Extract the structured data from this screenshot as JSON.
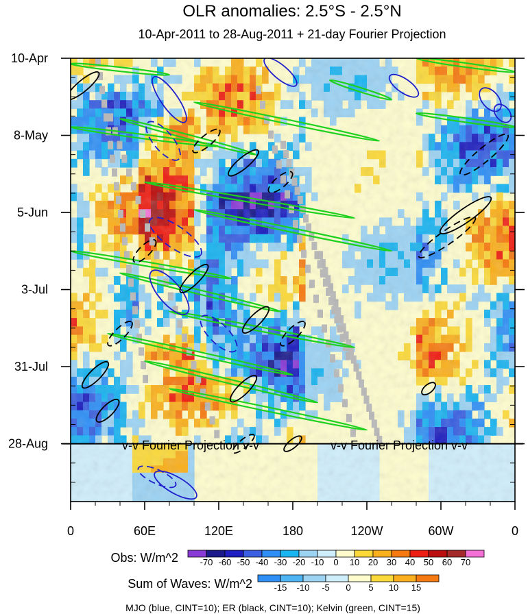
{
  "chart_data": {
    "type": "heatmap",
    "title": "OLR anomalies: 2.5°S - 2.5°N",
    "subtitle": "10-Apr-2011 to 28-Aug-2011 + 21-day Fourier Projection",
    "x_ticks": [
      "0",
      "60E",
      "120E",
      "180",
      "120W",
      "60W",
      "0"
    ],
    "x_range_degE": [
      0,
      360
    ],
    "y_ticks": [
      "10-Apr",
      "8-May",
      "5-Jun",
      "3-Jul",
      "31-Jul",
      "28-Aug"
    ],
    "y_range_days": [
      0,
      161
    ],
    "projection_start_day": 140,
    "projection_label": "v-v Fourier Projection v-v",
    "obs_legend": {
      "label": "Obs: W/m^2",
      "levels": [
        "-70",
        "-60",
        "-50",
        "-40",
        "-30",
        "-20",
        "-10",
        "0",
        "10",
        "20",
        "30",
        "40",
        "50",
        "60",
        "70"
      ],
      "colors": [
        "#8a3bd6",
        "#1a1a8c",
        "#1f1fbf",
        "#3a5fe0",
        "#2f8ff5",
        "#1ab4f0",
        "#9cd3f3",
        "#cfeefb",
        "#fefccd",
        "#fbd93a",
        "#fab01e",
        "#f57a12",
        "#ee1f14",
        "#bb1010",
        "#a52a2a",
        "#f570d6"
      ]
    },
    "waves_legend": {
      "label": "Sum of Waves: W/m^2",
      "levels": [
        "-15",
        "-10",
        "-5",
        "0",
        "5",
        "10",
        "15"
      ],
      "colors": [
        "#2f8ff5",
        "#4fb4f2",
        "#9cd3f3",
        "#cfeefb",
        "#fefccd",
        "#fbd93a",
        "#fab01e",
        "#f57a12"
      ]
    },
    "footer": "MJO (blue, CINT=10); ER (black, CINT=10); Kelvin (green, CINT=15)",
    "series": [
      {
        "name": "MJO",
        "color": "#1f1fcc"
      },
      {
        "name": "ER",
        "color": "#000000"
      },
      {
        "name": "Kelvin",
        "color": "#1fd11f"
      }
    ]
  }
}
